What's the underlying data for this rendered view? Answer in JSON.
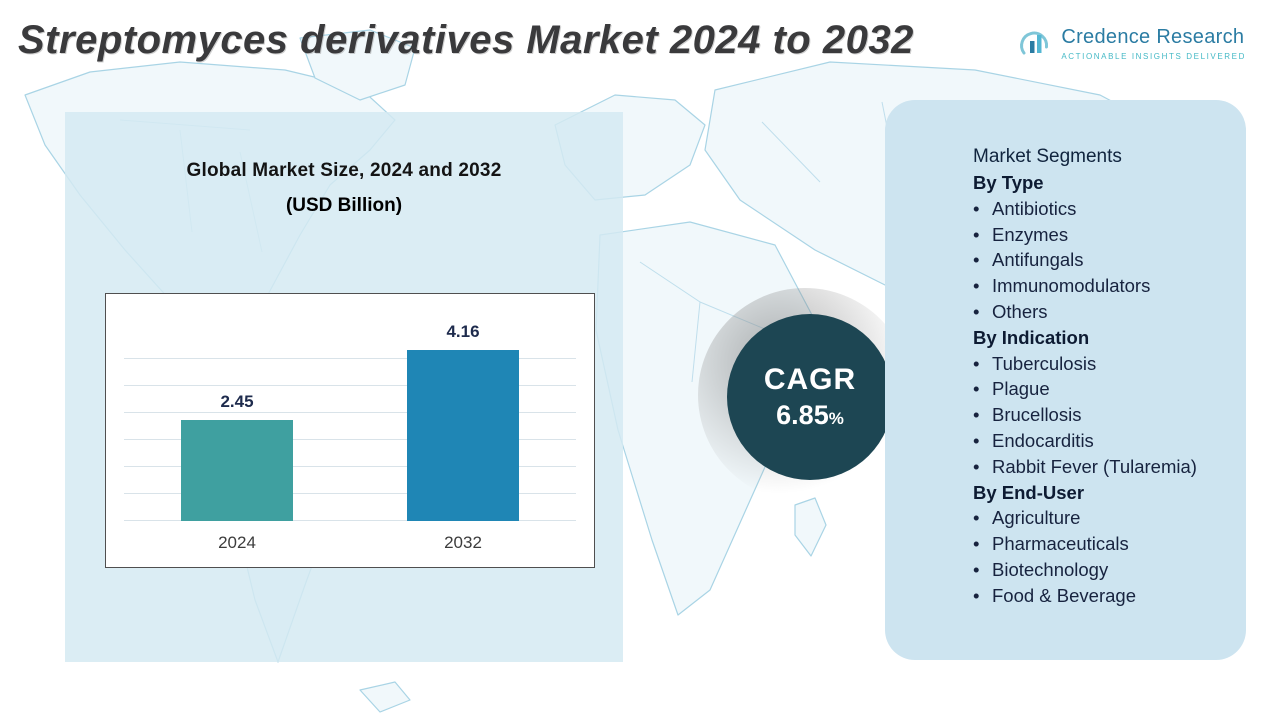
{
  "title": "Streptomyces derivatives Market 2024 to 2032",
  "logo": {
    "name": "Credence Research",
    "tagline": "Actionable Insights Delivered"
  },
  "chart_panel": {
    "title": "Global Market Size, 2024 and 2032",
    "subtitle": "(USD Billion)"
  },
  "chart_data": {
    "type": "bar",
    "categories": [
      "2024",
      "2032"
    ],
    "values": [
      2.45,
      4.16
    ],
    "data_labels": [
      "2.45",
      "4.16"
    ],
    "title": "Global Market Size, 2024 and 2032",
    "xlabel": "",
    "ylabel": "USD Billion",
    "ylim": [
      0,
      4.5
    ],
    "grid": true,
    "legend": false,
    "bar_colors": [
      "#3fa0a0",
      "#1f86b5"
    ]
  },
  "cagr": {
    "label": "CAGR",
    "value": "6.85",
    "percent_sign": "%"
  },
  "segments": {
    "header": "Market Segments",
    "groups": [
      {
        "label": "By Type",
        "items": [
          "Antibiotics",
          "Enzymes",
          "Antifungals",
          "Immunomodulators",
          "Others"
        ]
      },
      {
        "label": "By Indication",
        "items": [
          "Tuberculosis",
          "Plague",
          "Brucellosis",
          "Endocarditis",
          "Rabbit Fever (Tularemia)"
        ]
      },
      {
        "label": "By End-User",
        "items": [
          "Agriculture",
          "Pharmaceuticals",
          "Biotechnology",
          "Food & Beverage"
        ]
      }
    ]
  },
  "colors": {
    "bar_2024": "#3fa0a0",
    "bar_2032": "#1f86b5",
    "cagr_circle": "#1d4653",
    "panel_blue": "#cde4f0",
    "brand_blue": "#2b7ca3",
    "brand_teal": "#45b9c6"
  }
}
